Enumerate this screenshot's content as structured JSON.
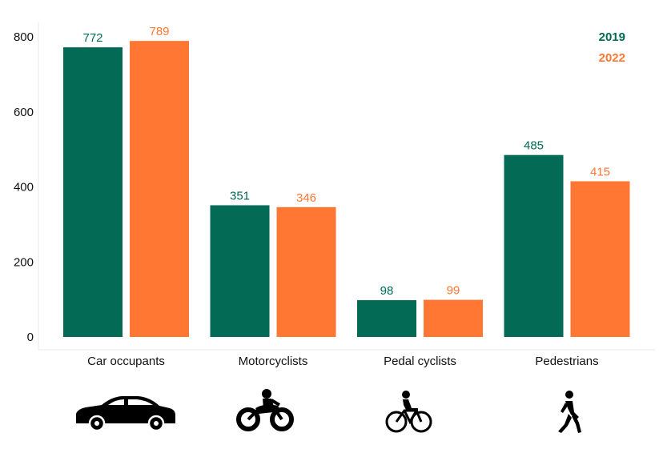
{
  "chart_data": {
    "type": "bar",
    "categories": [
      "Car occupants",
      "Motorcyclists",
      "Pedal cyclists",
      "Pedestrians"
    ],
    "series": [
      {
        "name": "2019",
        "values": [
          772,
          351,
          98,
          485
        ],
        "color": "#026a55"
      },
      {
        "name": "2022",
        "values": [
          789,
          346,
          99,
          415
        ],
        "color": "#ff7733"
      }
    ],
    "y_ticks": [
      0,
      200,
      400,
      600,
      800
    ],
    "ylim": [
      0,
      800
    ],
    "legend_position": "top-right",
    "grid": false,
    "category_icons": [
      "car-icon",
      "motorcycle-icon",
      "bicycle-icon",
      "pedestrian-icon"
    ]
  }
}
